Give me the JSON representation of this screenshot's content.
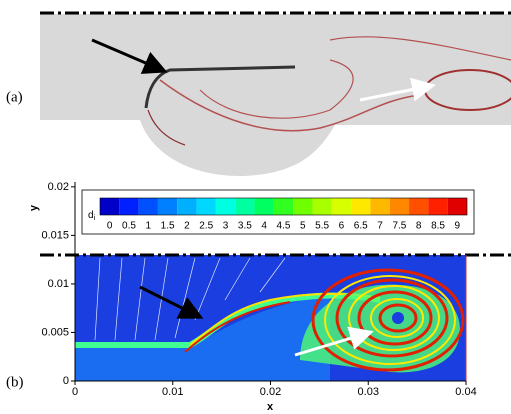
{
  "panel_labels": [
    "(a)",
    "(b)"
  ],
  "chart_data": {
    "type": "contour",
    "x_label": "x",
    "y_label": "y",
    "xlim": [
      0,
      0.04
    ],
    "ylim": [
      0,
      0.0205
    ],
    "xticks": [
      0,
      0.01,
      0.02,
      0.03,
      0.04
    ],
    "yticks": [
      0,
      0.005,
      0.01,
      0.015,
      0.02
    ],
    "colorbar": {
      "label": "d",
      "label_sub": "i",
      "levels": [
        0,
        0.5,
        1,
        1.5,
        2,
        2.5,
        3,
        3.5,
        4,
        4.5,
        5,
        5.5,
        6,
        6.5,
        7,
        7.5,
        8,
        8.5,
        9
      ],
      "colors": [
        "#0000c8",
        "#0020ff",
        "#0050ff",
        "#0080ff",
        "#00b0ff",
        "#00d8ff",
        "#00ffe0",
        "#00ffa0",
        "#00ff60",
        "#30ff20",
        "#70ff00",
        "#a8ff00",
        "#d8ff00",
        "#ffe800",
        "#ffb800",
        "#ff8800",
        "#ff5000",
        "#ff2000",
        "#e00000"
      ]
    }
  }
}
